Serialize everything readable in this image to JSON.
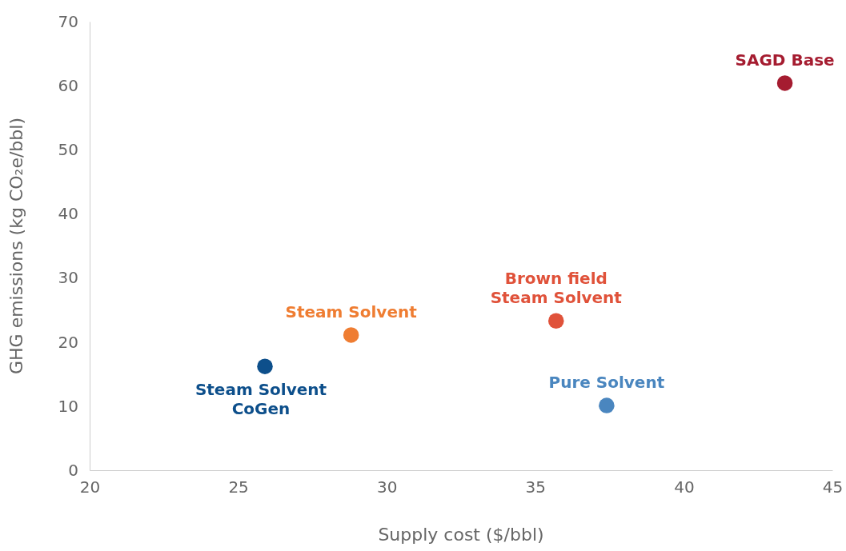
{
  "chart_data": {
    "type": "scatter",
    "xlabel": "Supply cost ($/bbl)",
    "ylabel": "GHG emissions (kg CO₂e/bbl)",
    "xlim": [
      20,
      45
    ],
    "xticks": [
      20,
      25,
      30,
      35,
      40,
      45
    ],
    "ylim": [
      0,
      70
    ],
    "yticks": [
      0,
      10,
      20,
      30,
      40,
      50,
      60,
      70
    ],
    "grid": false,
    "marker": "circle",
    "series": [
      {
        "name": "SAGD Base",
        "color": "#a51c30",
        "x": [
          43.4
        ],
        "values": [
          60.4
        ]
      },
      {
        "name": "Brown field\nSteam Solvent",
        "color": "#e0523a",
        "x": [
          35.7
        ],
        "values": [
          23.3
        ]
      },
      {
        "name": "Steam Solvent",
        "color": "#ef7d32",
        "x": [
          28.8
        ],
        "values": [
          21.1
        ]
      },
      {
        "name": "Steam Solvent\nCoGen",
        "color": "#0d4f8b",
        "x": [
          25.9
        ],
        "values": [
          16.2
        ]
      },
      {
        "name": "Pure Solvent",
        "color": "#4a86bf",
        "x": [
          37.4
        ],
        "values": [
          10.1
        ]
      }
    ]
  }
}
